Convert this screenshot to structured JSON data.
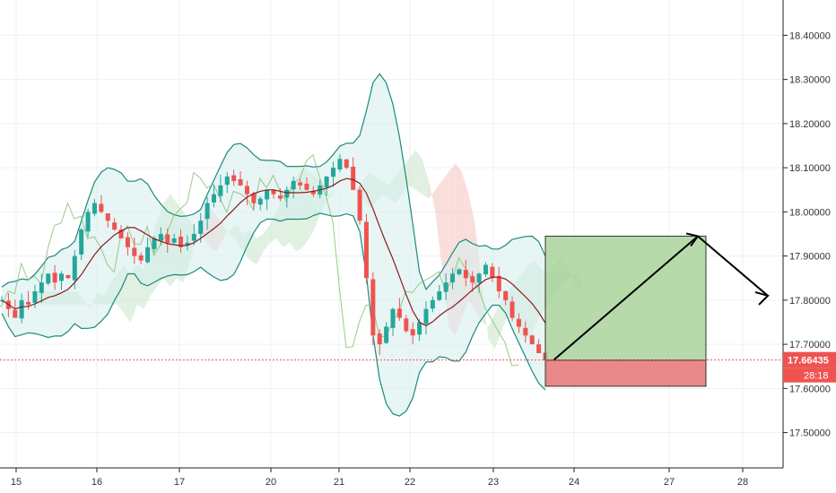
{
  "chart_data": {
    "type": "candlestick",
    "title": "",
    "xlabel": "",
    "ylabel": "",
    "ylim": [
      17.42,
      18.48
    ],
    "y_ticks": [
      "18.40000",
      "18.30000",
      "18.20000",
      "18.10000",
      "18.00000",
      "17.90000",
      "17.80000",
      "17.70000",
      "17.60000",
      "17.50000"
    ],
    "x_ticks": [
      "15",
      "16",
      "17",
      "20",
      "21",
      "22",
      "23",
      "24",
      "27",
      "28"
    ],
    "grid": true,
    "price_tag": {
      "value": "17.66435",
      "countdown": "28:18"
    },
    "colors": {
      "up": "#26a69a",
      "down": "#ef5350",
      "bb_line": "#1b8a7a",
      "bb_fill": "#d7efee",
      "ema": "#8b1c1c",
      "lagging": "#7fbf6a",
      "cloud_up": "#c8e6c9",
      "cloud_down": "#f5c2c0",
      "target": "#a5d196",
      "stop": "#e57373",
      "price_line": "#ef5350"
    },
    "close_series": [
      17.8,
      17.78,
      17.76,
      17.8,
      17.79,
      17.82,
      17.84,
      17.86,
      17.84,
      17.86,
      17.85,
      17.9,
      17.96,
      18.0,
      18.02,
      18.0,
      17.98,
      17.96,
      17.94,
      17.92,
      17.9,
      17.89,
      17.92,
      17.94,
      17.95,
      17.93,
      17.94,
      17.92,
      17.93,
      17.95,
      17.98,
      18.02,
      18.04,
      18.06,
      18.08,
      18.07,
      18.06,
      18.04,
      18.02,
      18.03,
      18.05,
      18.04,
      18.03,
      18.05,
      18.07,
      18.06,
      18.05,
      18.04,
      18.06,
      18.08,
      18.1,
      18.12,
      18.1,
      18.05,
      17.98,
      17.85,
      17.72,
      17.7,
      17.74,
      17.78,
      17.76,
      17.73,
      17.72,
      17.75,
      17.78,
      17.8,
      17.82,
      17.84,
      17.86,
      17.87,
      17.85,
      17.84,
      17.86,
      17.88,
      17.85,
      17.82,
      17.8,
      17.76,
      17.74,
      17.72,
      17.7,
      17.68,
      17.664
    ],
    "trade": {
      "entry": 17.664,
      "target": 17.945,
      "stop": 17.605,
      "start": "23",
      "end": "27",
      "arrow_from": 17.664,
      "arrow_to": 17.945,
      "second_arrow_to": 17.81
    }
  }
}
